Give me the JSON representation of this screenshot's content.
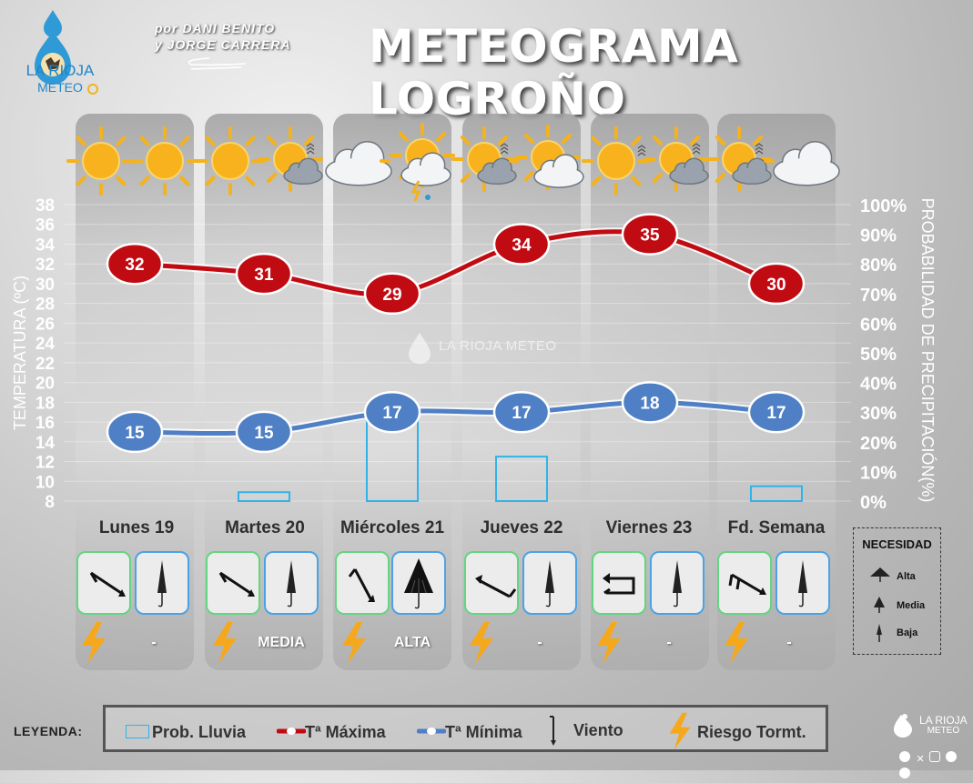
{
  "header": {
    "logo_line1": "LA RIOJA",
    "logo_line2": "METEO",
    "credits_line1": "por DANI BENITO",
    "credits_line2": "y JORGE CARRERA",
    "title": "METEOGRAMA LOGROÑO"
  },
  "watermark": {
    "text": "LA RIOJA METEO"
  },
  "days": [
    {
      "label": "Lunes 19",
      "sky": [
        "sunny",
        "sunny"
      ],
      "wind": "arrow-down-right",
      "umbrella": "low",
      "storm_risk": "-"
    },
    {
      "label": "Martes 20",
      "sky": [
        "sunny",
        "sun-cloud-haze"
      ],
      "wind": "arrow-down-right",
      "umbrella": "low",
      "storm_risk": "MEDIA"
    },
    {
      "label": "Miércoles 21",
      "sky": [
        "cloudy",
        "sun-cloud-storm"
      ],
      "wind": "arrow-down",
      "umbrella": "high",
      "storm_risk": "ALTA"
    },
    {
      "label": "Jueves 22",
      "sky": [
        "sun-cloud-haze",
        "sun-cloud"
      ],
      "wind": "arrow-up-left",
      "umbrella": "low",
      "storm_risk": "-"
    },
    {
      "label": "Viernes 23",
      "sky": [
        "sun-haze",
        "sun-cloud-haze"
      ],
      "wind": "variable",
      "umbrella": "low",
      "storm_risk": "-"
    },
    {
      "label": "Fd. Semana",
      "sky": [
        "sun-cloud-haze",
        "cloudy"
      ],
      "wind": "arrow-down-right",
      "umbrella": "low",
      "storm_risk": "-"
    }
  ],
  "need_legend": {
    "title": "NECESIDAD",
    "items": [
      "Alta",
      "Media",
      "Baja"
    ]
  },
  "legend": {
    "label": "LEYENDA:",
    "rain": "Prob. Lluvia",
    "tmax": "Tª Máxima",
    "tmin": "Tª Mínima",
    "wind": "Viento",
    "storm": "Riesgo Tormt."
  },
  "corner_logo": {
    "line1": "LA RIOJA",
    "line2": "METEO"
  },
  "colors": {
    "tmax": "#c10b12",
    "tmin": "#4f7fc4",
    "rain": "#2fb4ea",
    "bolt": "#f6a81c",
    "wind_border": "#62d680",
    "umbrella_border": "#4aa3e6"
  },
  "chart_data": {
    "type": "line",
    "categories": [
      "Lunes 19",
      "Martes 20",
      "Miércoles 21",
      "Jueves 22",
      "Viernes 23",
      "Fd. Semana"
    ],
    "series": [
      {
        "name": "Tª Máxima",
        "values": [
          32,
          31,
          29,
          34,
          35,
          30
        ],
        "axis": "left"
      },
      {
        "name": "Tª Mínima",
        "values": [
          15,
          15,
          17,
          17,
          18,
          17
        ],
        "axis": "left"
      },
      {
        "name": "Prob. Lluvia",
        "type": "bar",
        "values": [
          0,
          3,
          30,
          15,
          0,
          5
        ],
        "axis": "right"
      }
    ],
    "ylabel": "TEMPERATURA (ºC)",
    "ylabel_right": "PROBABILIDAD DE PRECIPITACIÓN(%)",
    "ylim": [
      8,
      38
    ],
    "yticks": [
      38,
      36,
      34,
      32,
      30,
      28,
      26,
      24,
      22,
      20,
      18,
      16,
      14,
      12,
      10,
      8
    ],
    "ylim_right": [
      0,
      100
    ],
    "yticks_right": [
      "100%",
      "90%",
      "80%",
      "70%",
      "60%",
      "50%",
      "40%",
      "30%",
      "20%",
      "10%",
      "0%"
    ],
    "grid": true
  }
}
